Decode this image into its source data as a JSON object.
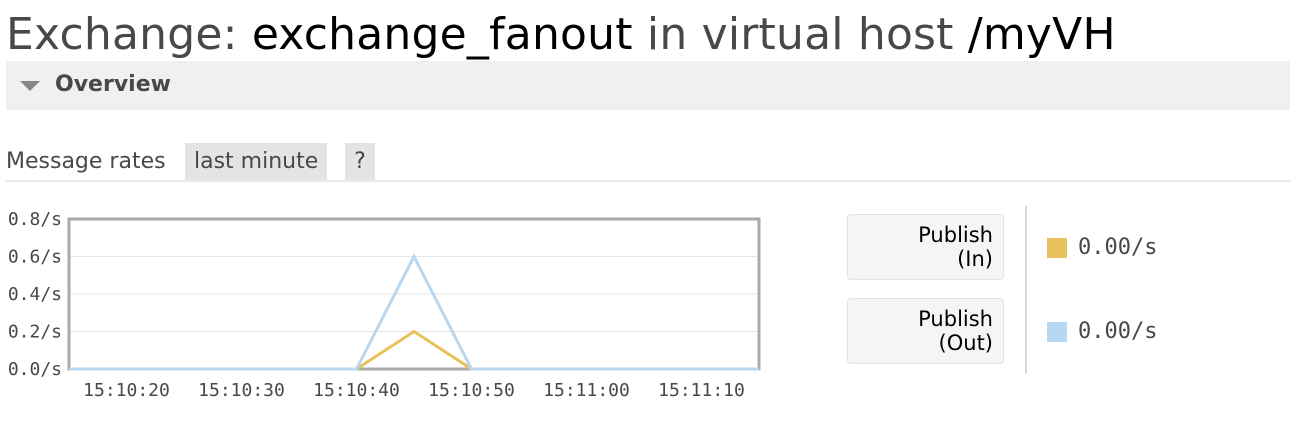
{
  "header": {
    "prefix": "Exchange:",
    "exchange_name": "exchange_fanout",
    "middle": "in virtual host",
    "vhost": "/myVH"
  },
  "section": {
    "title": "Overview",
    "toggle_icon": "triangle-down-icon"
  },
  "rates": {
    "label": "Message rates",
    "range_button": "last minute",
    "help_button": "?"
  },
  "legend": {
    "publish_in": {
      "label": "Publish\n(In)",
      "value": "0.00/s",
      "color": "#e8c15a"
    },
    "publish_out": {
      "label": "Publish\n(Out)",
      "value": "0.00/s",
      "color": "#b8d7f1"
    }
  },
  "chart_data": {
    "type": "line",
    "x": [
      "15:10:15",
      "15:10:20",
      "15:10:25",
      "15:10:30",
      "15:10:35",
      "15:10:40",
      "15:10:45",
      "15:10:50",
      "15:10:55",
      "15:11:00",
      "15:11:05",
      "15:11:10",
      "15:11:15"
    ],
    "series": [
      {
        "name": "Publish (In)",
        "color": "#e8c15a",
        "values": [
          0,
          0,
          0,
          0,
          0,
          0,
          0.2,
          0,
          0,
          0,
          0,
          0,
          0
        ]
      },
      {
        "name": "Publish (Out)",
        "color": "#b8d7f1",
        "values": [
          0,
          0,
          0,
          0,
          0,
          0,
          0.6,
          0,
          0,
          0,
          0,
          0,
          0
        ]
      }
    ],
    "ylim": [
      0,
      0.8
    ],
    "yticks": [
      "0.0/s",
      "0.2/s",
      "0.4/s",
      "0.6/s",
      "0.8/s"
    ],
    "xticks": [
      "15:10:20",
      "15:10:30",
      "15:10:40",
      "15:10:50",
      "15:11:00",
      "15:11:10"
    ],
    "grid": true
  }
}
